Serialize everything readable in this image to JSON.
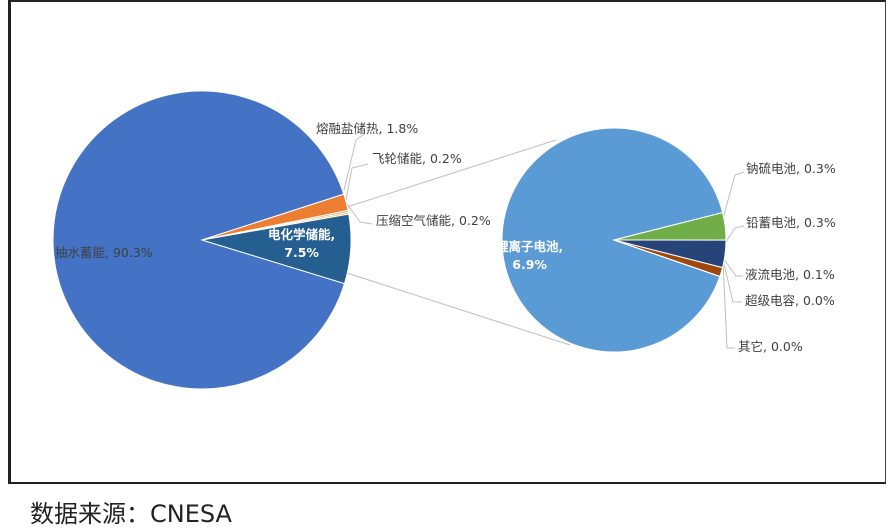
{
  "chart_data": [
    {
      "type": "pie",
      "value_labels": [
        "抽水蓄能, 90.3%",
        "熔融盐储热, 1.8%",
        "飞轮储能, 0.2%",
        "压缩空气储能, 0.2%",
        "电化学储能,\n7.5%"
      ],
      "values": [
        90.3,
        1.8,
        0.2,
        0.2,
        7.5
      ],
      "colors": [
        "#4472c4",
        "#ed7d31",
        "#a5a5a5",
        "#ffc000",
        "#255e91"
      ]
    },
    {
      "type": "pie",
      "value_labels": [
        "锂离子电池,\n6.9%",
        "钠硫电池, 0.3%",
        "铅蓄电池, 0.3%",
        "液流电池, 0.1%",
        "超级电容, 0.0%",
        "其它, 0.0%"
      ],
      "values": [
        6.9,
        0.3,
        0.3,
        0.1,
        0.0,
        0.0
      ],
      "colors": [
        "#5b9bd5",
        "#70ad47",
        "#264478",
        "#9e480e",
        "#636363",
        "#997300"
      ]
    }
  ],
  "source": "数据来源：CNESA"
}
